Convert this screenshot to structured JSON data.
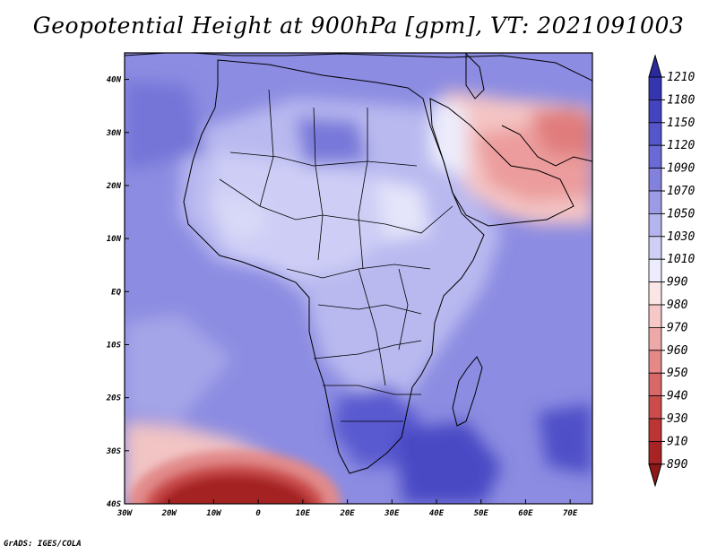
{
  "title": "Geopotential Height at 900hPa [gpm], VT: 2021091003",
  "footer": "GrADS: IGES/COLA",
  "map": {
    "lon_range": [
      -30,
      75
    ],
    "lat_range": [
      -40,
      45
    ],
    "lon_ticks": [
      {
        "v": -30,
        "label": "30W"
      },
      {
        "v": -20,
        "label": "20W"
      },
      {
        "v": -10,
        "label": "10W"
      },
      {
        "v": 0,
        "label": "0"
      },
      {
        "v": 10,
        "label": "10E"
      },
      {
        "v": 20,
        "label": "20E"
      },
      {
        "v": 30,
        "label": "30E"
      },
      {
        "v": 40,
        "label": "40E"
      },
      {
        "v": 50,
        "label": "50E"
      },
      {
        "v": 60,
        "label": "60E"
      },
      {
        "v": 70,
        "label": "70E"
      }
    ],
    "lat_ticks": [
      {
        "v": 40,
        "label": "40N"
      },
      {
        "v": 30,
        "label": "30N"
      },
      {
        "v": 20,
        "label": "20N"
      },
      {
        "v": 10,
        "label": "10N"
      },
      {
        "v": 0,
        "label": "EQ"
      },
      {
        "v": -10,
        "label": "10S"
      },
      {
        "v": -20,
        "label": "20S"
      },
      {
        "v": -30,
        "label": "30S"
      },
      {
        "v": -40,
        "label": "40S"
      }
    ]
  },
  "colorbar": {
    "labels": [
      "1210",
      "1180",
      "1150",
      "1120",
      "1090",
      "1070",
      "1050",
      "1030",
      "1010",
      "990",
      "980",
      "970",
      "960",
      "950",
      "940",
      "930",
      "910",
      "890"
    ],
    "colors": [
      "#2a2a9e",
      "#3535b0",
      "#4444c0",
      "#5555cc",
      "#6a6ad6",
      "#8282de",
      "#9c9ce6",
      "#b4b4ee",
      "#cfcff6",
      "#ececfc",
      "#fbe6e6",
      "#f6c8c8",
      "#eda8a8",
      "#e48888",
      "#d86868",
      "#cc4c4c",
      "#bc3434",
      "#a82424",
      "#8e1818"
    ]
  }
}
